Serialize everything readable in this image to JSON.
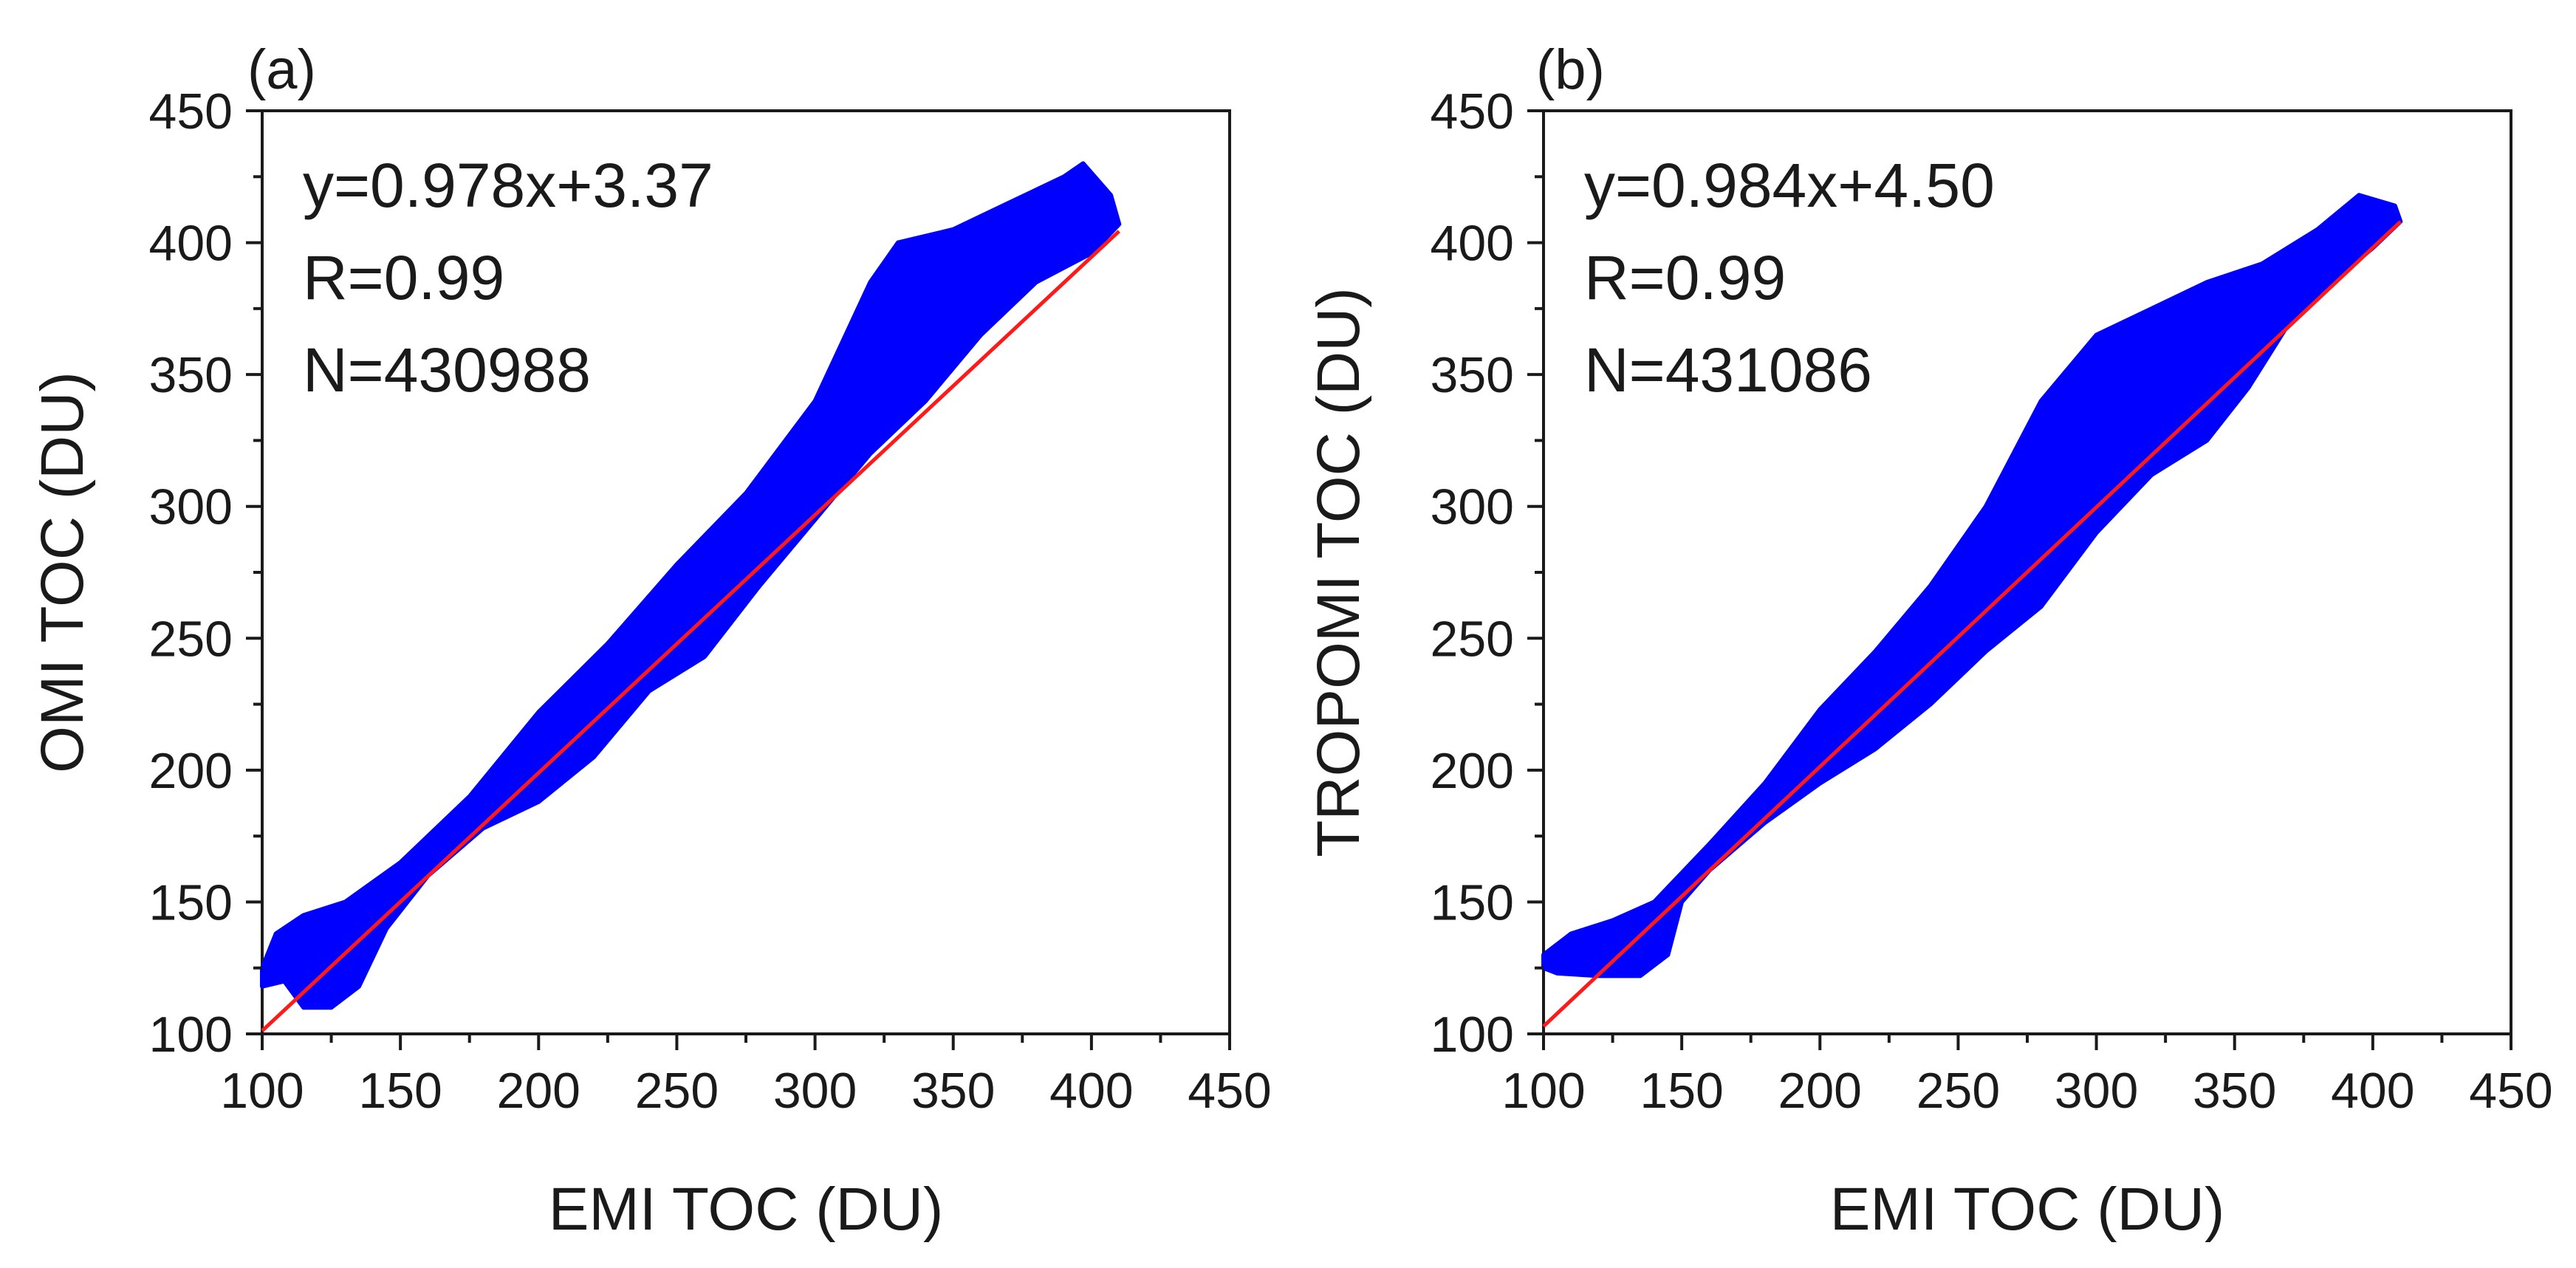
{
  "chart_data": [
    {
      "type": "scatter",
      "panel_label": "(a)",
      "xlabel": "EMI TOC (DU)",
      "ylabel": "OMI TOC (DU)",
      "xlim": [
        100,
        450
      ],
      "ylim": [
        100,
        450
      ],
      "xticks": [
        "100",
        "150",
        "200",
        "250",
        "300",
        "350",
        "400",
        "450"
      ],
      "yticks": [
        "100",
        "150",
        "200",
        "250",
        "300",
        "350",
        "400",
        "450"
      ],
      "annotations": [
        "y=0.978x+3.37",
        "R=0.99",
        "N=430988"
      ],
      "fit": {
        "slope": 0.978,
        "intercept": 3.37,
        "x_range": [
          100,
          410
        ],
        "color": "#ff1a1a"
      },
      "point_color": "#0000ff",
      "scatter_envelope": [
        [
          100,
          125
        ],
        [
          105,
          138
        ],
        [
          115,
          145
        ],
        [
          130,
          150
        ],
        [
          150,
          165
        ],
        [
          175,
          190
        ],
        [
          200,
          222
        ],
        [
          225,
          248
        ],
        [
          250,
          278
        ],
        [
          275,
          305
        ],
        [
          300,
          340
        ],
        [
          320,
          385
        ],
        [
          330,
          400
        ],
        [
          350,
          405
        ],
        [
          370,
          415
        ],
        [
          390,
          425
        ],
        [
          397,
          430
        ],
        [
          407,
          418
        ],
        [
          410,
          407
        ],
        [
          400,
          396
        ],
        [
          380,
          385
        ],
        [
          360,
          365
        ],
        [
          340,
          340
        ],
        [
          320,
          320
        ],
        [
          300,
          295
        ],
        [
          280,
          270
        ],
        [
          260,
          243
        ],
        [
          240,
          230
        ],
        [
          220,
          205
        ],
        [
          200,
          188
        ],
        [
          180,
          178
        ],
        [
          160,
          160
        ],
        [
          145,
          140
        ],
        [
          135,
          118
        ],
        [
          125,
          110
        ],
        [
          115,
          110
        ],
        [
          108,
          120
        ],
        [
          100,
          118
        ]
      ]
    },
    {
      "type": "scatter",
      "panel_label": "(b)",
      "xlabel": "EMI TOC (DU)",
      "ylabel": "TROPOMI TOC (DU)",
      "xlim": [
        100,
        450
      ],
      "ylim": [
        100,
        450
      ],
      "xticks": [
        "100",
        "150",
        "200",
        "250",
        "300",
        "350",
        "400",
        "450"
      ],
      "yticks": [
        "100",
        "150",
        "200",
        "250",
        "300",
        "350",
        "400",
        "450"
      ],
      "annotations": [
        "y=0.984x+4.50",
        "R=0.99",
        "N=431086"
      ],
      "fit": {
        "slope": 0.984,
        "intercept": 4.5,
        "x_range": [
          100,
          410
        ],
        "color": "#ff1a1a"
      },
      "point_color": "#0000ff",
      "scatter_envelope": [
        [
          100,
          130
        ],
        [
          110,
          138
        ],
        [
          125,
          143
        ],
        [
          140,
          150
        ],
        [
          160,
          172
        ],
        [
          180,
          195
        ],
        [
          200,
          223
        ],
        [
          220,
          245
        ],
        [
          240,
          270
        ],
        [
          260,
          300
        ],
        [
          280,
          340
        ],
        [
          300,
          365
        ],
        [
          320,
          375
        ],
        [
          340,
          385
        ],
        [
          360,
          392
        ],
        [
          380,
          405
        ],
        [
          395,
          418
        ],
        [
          408,
          414
        ],
        [
          410,
          408
        ],
        [
          400,
          398
        ],
        [
          385,
          385
        ],
        [
          370,
          370
        ],
        [
          355,
          345
        ],
        [
          340,
          325
        ],
        [
          320,
          312
        ],
        [
          300,
          290
        ],
        [
          280,
          262
        ],
        [
          260,
          245
        ],
        [
          240,
          225
        ],
        [
          220,
          208
        ],
        [
          200,
          195
        ],
        [
          180,
          180
        ],
        [
          160,
          162
        ],
        [
          150,
          150
        ],
        [
          145,
          130
        ],
        [
          135,
          122
        ],
        [
          120,
          122
        ],
        [
          105,
          123
        ],
        [
          100,
          125
        ]
      ]
    }
  ]
}
